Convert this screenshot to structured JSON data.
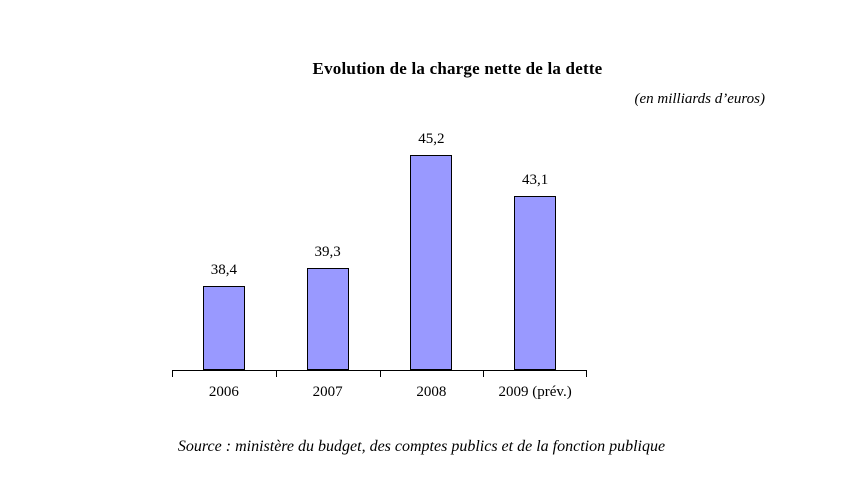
{
  "chart_data": {
    "type": "bar",
    "title": "Evolution de la charge nette de la dette",
    "subtitle": "(en milliards d’euros)",
    "categories": [
      "2006",
      "2007",
      "2008",
      "2009 (prév.)"
    ],
    "values": [
      38.4,
      39.3,
      45.2,
      43.1
    ],
    "value_labels": [
      "38,4",
      "39,3",
      "45,2",
      "43,1"
    ],
    "ylim": [
      34,
      46
    ],
    "xlabel": "",
    "ylabel": "",
    "grid": false,
    "legend": "none",
    "y_axis_visible": false,
    "bar_color": "#9999FF",
    "bar_border_color": "#000000",
    "axis_color": "#000000",
    "source": "Source : ministère du budget, des comptes publics et de la fonction publique"
  }
}
